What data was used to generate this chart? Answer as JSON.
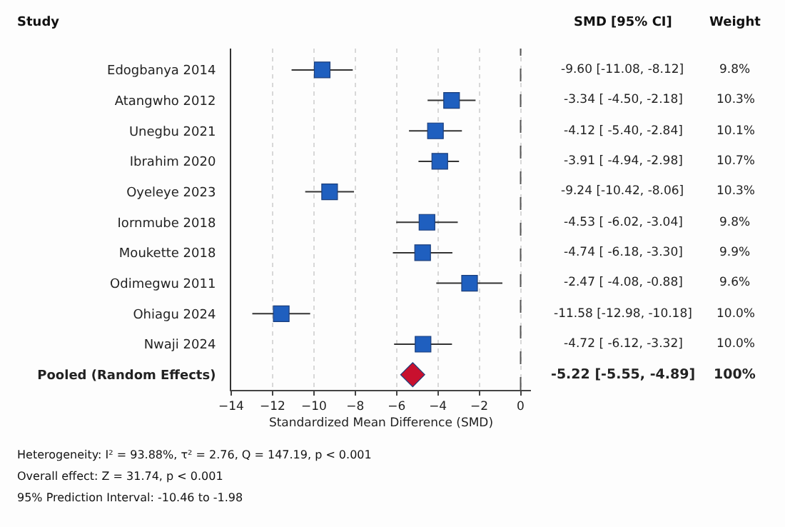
{
  "chart_data": {
    "type": "scatter",
    "orientation": "horizontal",
    "xlabel": "Standardized Mean Difference (SMD)",
    "categories": [
      "Edogbanya 2014",
      "Atangwho 2012",
      "Unegbu 2021",
      "Ibrahim 2020",
      "Oyeleye 2023",
      "Iornmube 2018",
      "Moukette 2018",
      "Odimegwu 2011",
      "Ohiagu 2024",
      "Nwaji 2024",
      "Pooled (Random Effects)"
    ],
    "series": [
      {
        "color": "#1f5fbf",
        "marker": "square",
        "values": [
          -9.6,
          -3.34,
          -4.12,
          -3.91,
          -9.24,
          -4.53,
          -4.74,
          -2.47,
          -11.58,
          -4.72,
          null
        ],
        "errors": [
          [
            -11.08,
            -8.12
          ],
          [
            -4.5,
            -2.18
          ],
          [
            -5.4,
            -2.84
          ],
          [
            -4.94,
            -2.98
          ],
          [
            -10.42,
            -8.06
          ],
          [
            -6.02,
            -3.04
          ],
          [
            -6.18,
            -3.3
          ],
          [
            -4.08,
            -0.88
          ],
          [
            -12.98,
            -10.18
          ],
          [
            -6.12,
            -3.32
          ],
          null
        ]
      },
      {
        "color": "#c8102e",
        "marker": "diamond",
        "values": [
          null,
          null,
          null,
          null,
          null,
          null,
          null,
          null,
          null,
          null,
          -5.22
        ]
      }
    ],
    "xlim": [
      -14,
      0.5
    ],
    "xticks": [
      -14,
      -12,
      -10,
      -8,
      -6,
      -4,
      -2,
      0
    ],
    "grid": "x",
    "ref_lines": [
      {
        "axis": "x",
        "value": 0,
        "line_style": "dashed",
        "color": "#555555"
      }
    ],
    "annotations": [
      "Study",
      "SMD [95% CI]",
      "Weight",
      "-9.60 [-11.08, -8.12]",
      "9.8%",
      "-3.34 [ -4.50, -2.18]",
      "10.3%",
      "-4.12 [ -5.40, -2.84]",
      "10.1%",
      "-3.91 [ -4.94, -2.98]",
      "10.7%",
      "-9.24 [-10.42, -8.06]",
      "10.3%",
      "-4.53 [ -6.02, -3.04]",
      "9.8%",
      "-4.74 [ -6.18, -3.30]",
      "9.9%",
      "-2.47 [ -4.08, -0.88]",
      "9.6%",
      "-11.58 [-12.98, -10.18]",
      "10.0%",
      "-4.72 [ -6.12, -3.32]",
      "10.0%",
      "-5.22 [-5.55, -4.89]",
      "100%",
      "Heterogeneity: I² = 93.88%, τ² = 2.76, Q = 147.19, p < 0.001",
      "Overall effect: Z = 31.74, p < 0.001",
      "95% Prediction Interval: -10.46 to -1.98"
    ]
  }
}
